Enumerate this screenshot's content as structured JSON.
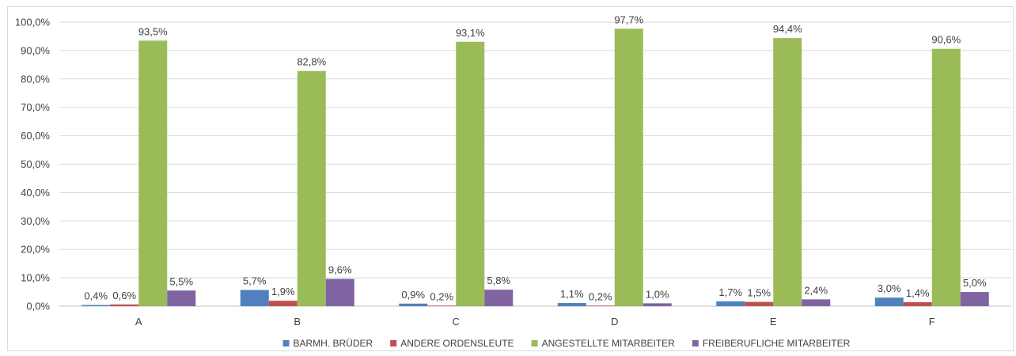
{
  "chart_data": {
    "type": "bar",
    "categories": [
      "A",
      "B",
      "C",
      "D",
      "E",
      "F"
    ],
    "series": [
      {
        "name": "BARMH. BRÜDER",
        "color": "#4f81bd",
        "values": [
          0.4,
          5.7,
          0.9,
          1.1,
          1.7,
          3.0
        ],
        "labels": [
          "0,4%",
          "5,7%",
          "0,9%",
          "1,1%",
          "1,7%",
          "3,0%"
        ]
      },
      {
        "name": "ANDERE ORDENSLEUTE",
        "color": "#c0504d",
        "values": [
          0.6,
          1.9,
          0.2,
          0.2,
          1.5,
          1.4
        ],
        "labels": [
          "0,6%",
          "1,9%",
          "0,2%",
          "0,2%",
          "1,5%",
          "1,4%"
        ]
      },
      {
        "name": "ANGESTELLTE MITARBEITER",
        "color": "#9bbb59",
        "values": [
          93.5,
          82.8,
          93.1,
          97.7,
          94.4,
          90.6
        ],
        "labels": [
          "93,5%",
          "82,8%",
          "93,1%",
          "97,7%",
          "94,4%",
          "90,6%"
        ]
      },
      {
        "name": "FREIBERUFLICHE MITARBEITER",
        "color": "#8064a2",
        "values": [
          5.5,
          9.6,
          5.8,
          1.0,
          2.4,
          5.0
        ],
        "labels": [
          "5,5%",
          "9,6%",
          "5,8%",
          "1,0%",
          "2,4%",
          "5,0%"
        ]
      }
    ],
    "y_ticks": [
      "0,0%",
      "10,0%",
      "20,0%",
      "30,0%",
      "40,0%",
      "50,0%",
      "60,0%",
      "70,0%",
      "80,0%",
      "90,0%",
      "100,0%"
    ],
    "ylim": [
      0,
      100
    ],
    "grid": true,
    "legend_position": "bottom",
    "title": "",
    "xlabel": "",
    "ylabel": ""
  }
}
